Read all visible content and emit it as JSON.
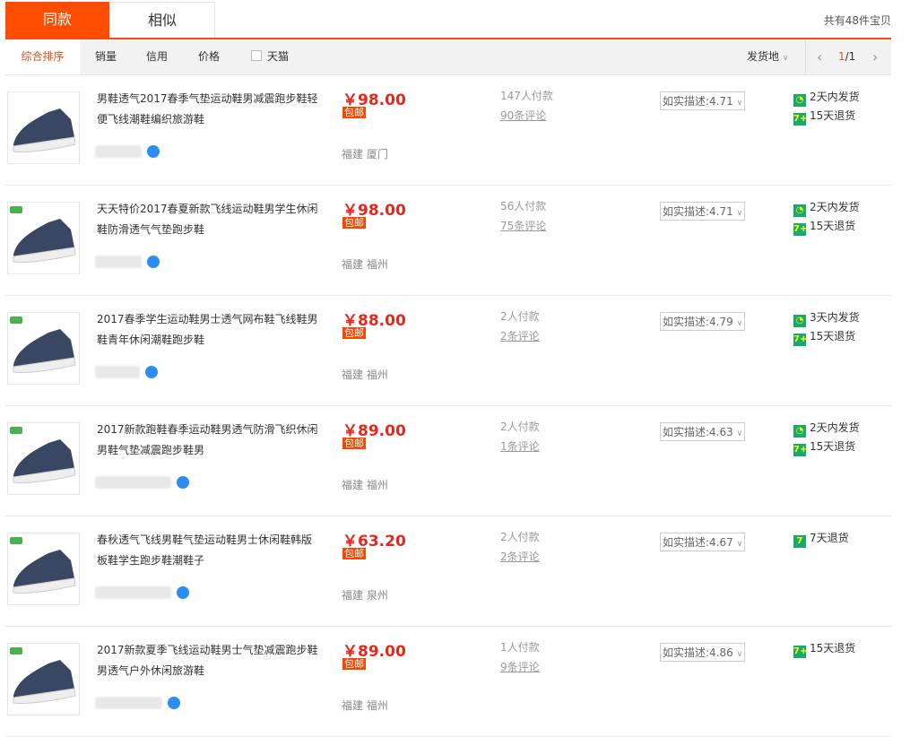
{
  "tabs": [
    "同款",
    "相似"
  ],
  "total": "共有48件宝贝",
  "filters": {
    "sort": "综合排序",
    "sales": "销量",
    "credit": "信用",
    "price": "价格",
    "tmall": "天猫",
    "ship_from": "发货地"
  },
  "pager": {
    "current": "1",
    "total": "/1",
    "prev": "‹",
    "next": "›"
  },
  "items": [
    {
      "title": "男鞋透气2017春季气垫运动鞋男减震跑步鞋轻便飞线潮鞋编织旅游鞋",
      "price": "￥98.00",
      "free": "包邮",
      "location": "福建 厦门",
      "sales": "147人付款",
      "comments": "90条评论",
      "rating": "如实描述:4.71",
      "services": [
        {
          "icon": "clock-icon",
          "text": "2天内发货"
        },
        {
          "icon": "return-icon",
          "text": "15天退货"
        }
      ],
      "logo": false
    },
    {
      "title": "天天特价2017春夏新款飞线运动鞋男学生休闲鞋防滑透气气垫跑步鞋",
      "price": "￥98.00",
      "free": "包邮",
      "location": "福建 福州",
      "sales": "56人付款",
      "comments": "75条评论",
      "rating": "如实描述:4.71",
      "services": [
        {
          "icon": "clock-icon",
          "text": "2天内发货"
        },
        {
          "icon": "return-icon",
          "text": "15天退货"
        }
      ],
      "logo": true
    },
    {
      "title": "2017春季学生运动鞋男士透气网布鞋飞线鞋男鞋青年休闲潮鞋跑步鞋",
      "price": "￥88.00",
      "free": "包邮",
      "location": "福建 福州",
      "sales": "2人付款",
      "comments": "2条评论",
      "rating": "如实描述:4.79",
      "services": [
        {
          "icon": "clock-icon",
          "text": "3天内发货"
        },
        {
          "icon": "return-icon",
          "text": "15天退货"
        }
      ],
      "logo": true
    },
    {
      "title": "2017新款跑鞋春季运动鞋男透气防滑飞织休闲男鞋气垫减震跑步鞋男",
      "price": "￥89.00",
      "free": "包邮",
      "location": "福建 福州",
      "sales": "2人付款",
      "comments": "1条评论",
      "rating": "如实描述:4.63",
      "services": [
        {
          "icon": "clock-icon",
          "text": "2天内发货"
        },
        {
          "icon": "return-icon",
          "text": "15天退货"
        }
      ],
      "logo": true
    },
    {
      "title": "春秋透气飞线男鞋气垫运动鞋男士休闲鞋韩版板鞋学生跑步鞋潮鞋子",
      "price": "￥63.20",
      "free": "包邮",
      "location": "福建 泉州",
      "sales": "2人付款",
      "comments": "2条评论",
      "rating": "如实描述:4.67",
      "services": [
        {
          "icon": "return-7-icon",
          "text": "7天退货"
        }
      ],
      "logo": true
    },
    {
      "title": "2017新款夏季飞线运动鞋男士气垫减震跑步鞋男透气户外休闲旅游鞋",
      "price": "￥89.00",
      "free": "包邮",
      "location": "福建 福州",
      "sales": "1人付款",
      "comments": "9条评论",
      "rating": "如实描述:4.86",
      "services": [
        {
          "icon": "return-icon",
          "text": "15天退货"
        }
      ],
      "logo": true
    }
  ],
  "colors": {
    "accent": "#ff4d00",
    "price": "#e4281e",
    "service": "#1aa96d"
  }
}
